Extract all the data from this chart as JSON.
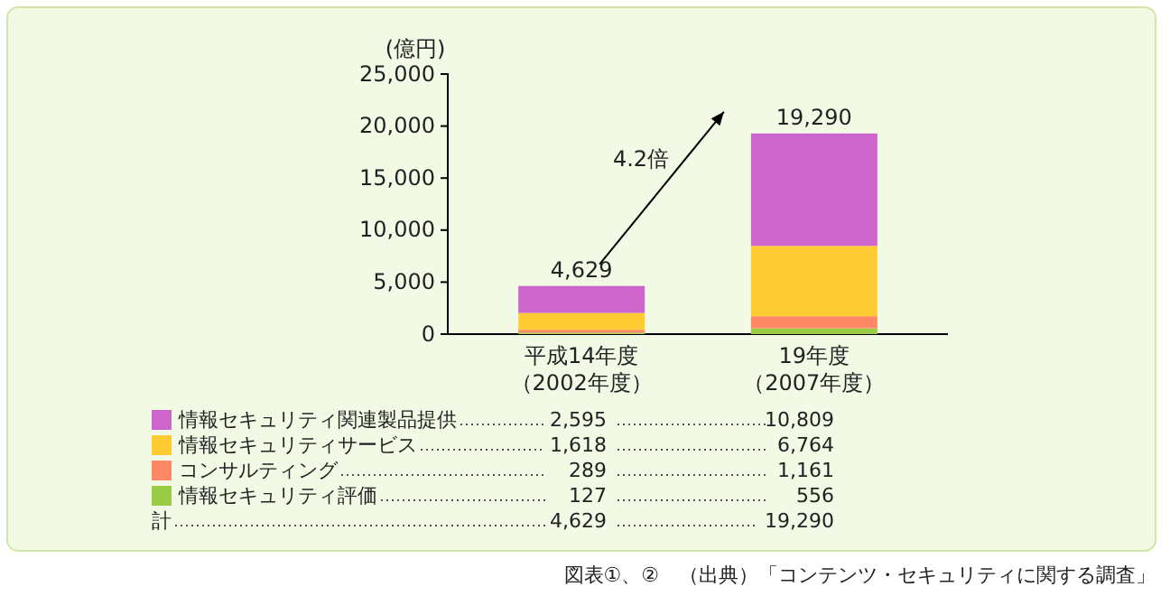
{
  "chart_data": {
    "type": "bar",
    "stacked": true,
    "ylabel": "(億円)",
    "categories": [
      "平成14年度（2002年度）",
      "19年度（2007年度）"
    ],
    "ylim": [
      0,
      25000
    ],
    "yticks": [
      {
        "value": 0,
        "label": "0"
      },
      {
        "value": 5000,
        "label": "5,000"
      },
      {
        "value": 10000,
        "label": "10,000"
      },
      {
        "value": 15000,
        "label": "15,000"
      },
      {
        "value": 20000,
        "label": "20,000"
      },
      {
        "value": 25000,
        "label": "25,000"
      }
    ],
    "series": [
      {
        "name": "情報セキュリティ評価",
        "color": "#99cc44",
        "values": [
          127,
          556
        ],
        "value_labels": [
          "127",
          "556"
        ]
      },
      {
        "name": "コンサルティング",
        "color": "#ff8866",
        "values": [
          289,
          1161
        ],
        "value_labels": [
          "289",
          "1,161"
        ]
      },
      {
        "name": "情報セキュリティサービス",
        "color": "#ffcc33",
        "values": [
          1618,
          6764
        ],
        "value_labels": [
          "1,618",
          "6,764"
        ]
      },
      {
        "name": "情報セキュリティ関連製品提供",
        "color": "#cc66cc",
        "values": [
          2595,
          10809
        ],
        "value_labels": [
          "2,595",
          "10,809"
        ]
      }
    ],
    "totals": [
      "4,629",
      "19,290"
    ],
    "legend": "bottom",
    "annotations": [
      "4.2倍",
      "計",
      "図表①、②　（出典）「コンテンツ・セキュリティに関する調査」"
    ]
  }
}
